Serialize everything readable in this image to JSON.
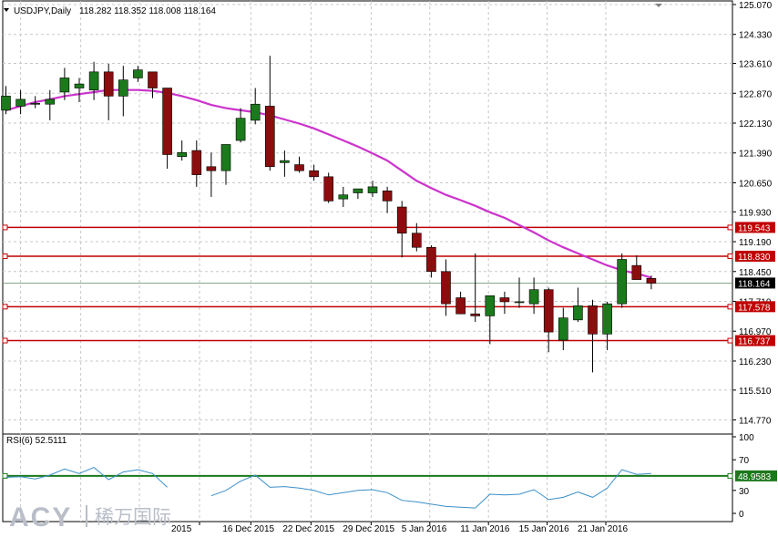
{
  "header": {
    "symbol": "USDJPY,Daily",
    "ohlc": "118.282 118.352 118.008 118.164"
  },
  "rsi_label": "RSI(6) 52.5111",
  "logo": {
    "brand": "ACY",
    "cn": "稀万国际"
  },
  "colors": {
    "bull": "#1b7a1b",
    "bear": "#8b0d0d",
    "ma": "#cc33cc",
    "level": "#c00000",
    "rsi_line": "#3a8fc8",
    "rsi_level": "#1b7a1b",
    "grid": "#c8c8c8"
  },
  "chart_data": [
    {
      "type": "candlestick",
      "title": "USDJPY,Daily",
      "ylim": [
        114.42,
        125.16
      ],
      "y_ticks": [
        "125.070",
        "124.330",
        "123.610",
        "122.870",
        "122.130",
        "121.390",
        "120.650",
        "119.930",
        "119.190",
        "118.450",
        "117.710",
        "116.970",
        "116.230",
        "115.510",
        "114.770"
      ],
      "x_tick_labels": [
        {
          "label": "2015",
          "index": 13.2
        },
        {
          "label": "16 Dec 2015",
          "index": 16.7
        },
        {
          "label": "22 Dec 2015",
          "index": 20.8
        },
        {
          "label": "29 Dec 2015",
          "index": 24.9
        },
        {
          "label": "5 Jan 2016",
          "index": 28.9
        },
        {
          "label": "11 Jan 2016",
          "index": 32.9
        },
        {
          "label": "15 Jan 2016",
          "index": 36.9
        },
        {
          "label": "21 Jan 2016",
          "index": 40.9
        }
      ],
      "candles": [
        {
          "o": 122.45,
          "h": 123.05,
          "l": 122.35,
          "c": 122.8
        },
        {
          "o": 122.55,
          "h": 122.95,
          "l": 122.35,
          "c": 122.72
        },
        {
          "o": 122.62,
          "h": 122.8,
          "l": 122.5,
          "c": 122.62
        },
        {
          "o": 122.6,
          "h": 122.95,
          "l": 122.2,
          "c": 122.72
        },
        {
          "o": 122.9,
          "h": 123.5,
          "l": 122.7,
          "c": 123.25
        },
        {
          "o": 123.0,
          "h": 123.25,
          "l": 122.65,
          "c": 123.1
        },
        {
          "o": 122.95,
          "h": 123.65,
          "l": 122.7,
          "c": 123.4
        },
        {
          "o": 123.4,
          "h": 123.6,
          "l": 122.2,
          "c": 122.8
        },
        {
          "o": 122.8,
          "h": 123.55,
          "l": 122.3,
          "c": 123.2
        },
        {
          "o": 123.25,
          "h": 123.55,
          "l": 123.15,
          "c": 123.45
        },
        {
          "o": 123.4,
          "h": 123.4,
          "l": 122.75,
          "c": 123.0
        },
        {
          "o": 123.0,
          "h": 123.0,
          "l": 121.0,
          "c": 121.35
        },
        {
          "o": 121.3,
          "h": 121.7,
          "l": 121.2,
          "c": 121.4
        },
        {
          "o": 121.45,
          "h": 121.7,
          "l": 120.55,
          "c": 120.85
        },
        {
          "o": 121.05,
          "h": 121.4,
          "l": 120.3,
          "c": 120.95
        },
        {
          "o": 120.95,
          "h": 121.55,
          "l": 120.6,
          "c": 121.6
        },
        {
          "o": 121.7,
          "h": 122.5,
          "l": 121.65,
          "c": 122.25
        },
        {
          "o": 122.2,
          "h": 123.0,
          "l": 122.1,
          "c": 122.6
        },
        {
          "o": 122.55,
          "h": 123.8,
          "l": 120.95,
          "c": 121.05
        },
        {
          "o": 121.15,
          "h": 121.45,
          "l": 120.8,
          "c": 121.2
        },
        {
          "o": 121.1,
          "h": 121.3,
          "l": 120.9,
          "c": 120.95
        },
        {
          "o": 120.95,
          "h": 121.1,
          "l": 120.7,
          "c": 120.8
        },
        {
          "o": 120.8,
          "h": 120.9,
          "l": 120.15,
          "c": 120.2
        },
        {
          "o": 120.25,
          "h": 120.55,
          "l": 120.05,
          "c": 120.35
        },
        {
          "o": 120.4,
          "h": 120.5,
          "l": 120.25,
          "c": 120.5
        },
        {
          "o": 120.4,
          "h": 120.7,
          "l": 120.3,
          "c": 120.55
        },
        {
          "o": 120.45,
          "h": 120.55,
          "l": 119.9,
          "c": 120.2
        },
        {
          "o": 120.05,
          "h": 120.2,
          "l": 118.8,
          "c": 119.4
        },
        {
          "o": 119.4,
          "h": 119.65,
          "l": 118.95,
          "c": 119.05
        },
        {
          "o": 119.05,
          "h": 119.1,
          "l": 118.3,
          "c": 118.45
        },
        {
          "o": 118.45,
          "h": 118.75,
          "l": 117.35,
          "c": 117.65
        },
        {
          "o": 117.8,
          "h": 117.95,
          "l": 117.4,
          "c": 117.4
        },
        {
          "o": 117.4,
          "h": 118.9,
          "l": 117.2,
          "c": 117.35
        },
        {
          "o": 117.35,
          "h": 117.85,
          "l": 116.65,
          "c": 117.85
        },
        {
          "o": 117.8,
          "h": 117.95,
          "l": 117.4,
          "c": 117.7
        },
        {
          "o": 117.7,
          "h": 118.3,
          "l": 117.55,
          "c": 117.7
        },
        {
          "o": 117.65,
          "h": 118.3,
          "l": 117.4,
          "c": 118.0
        },
        {
          "o": 118.0,
          "h": 118.05,
          "l": 116.45,
          "c": 116.95
        },
        {
          "o": 116.75,
          "h": 117.55,
          "l": 116.5,
          "c": 117.3
        },
        {
          "o": 117.25,
          "h": 118.05,
          "l": 117.2,
          "c": 117.6
        },
        {
          "o": 117.6,
          "h": 117.75,
          "l": 115.95,
          "c": 116.9
        },
        {
          "o": 116.9,
          "h": 117.7,
          "l": 116.5,
          "c": 117.65
        },
        {
          "o": 117.65,
          "h": 118.9,
          "l": 117.55,
          "c": 118.75
        },
        {
          "o": 118.6,
          "h": 118.85,
          "l": 118.25,
          "c": 118.25
        },
        {
          "o": 118.28,
          "h": 118.35,
          "l": 118.01,
          "c": 118.16
        }
      ],
      "ma": [
        122.45,
        122.55,
        122.65,
        122.72,
        122.8,
        122.85,
        122.9,
        122.95,
        122.95,
        122.95,
        122.93,
        122.88,
        122.8,
        122.7,
        122.58,
        122.5,
        122.45,
        122.4,
        122.32,
        122.22,
        122.12,
        122.0,
        121.85,
        121.7,
        121.55,
        121.38,
        121.2,
        120.95,
        120.7,
        120.52,
        120.35,
        120.22,
        120.08,
        119.92,
        119.78,
        119.6,
        119.42,
        119.22,
        119.05,
        118.9,
        118.75,
        118.6,
        118.48,
        118.4,
        118.3
      ],
      "levels": [
        {
          "value": 119.543,
          "label": "119.543"
        },
        {
          "value": 118.83,
          "label": "118.830"
        },
        {
          "value": 117.578,
          "label": "117.578"
        },
        {
          "value": 116.737,
          "label": "116.737"
        }
      ],
      "current_price": {
        "value": 118.164,
        "label": "118.164"
      }
    },
    {
      "type": "line",
      "title": "RSI(6) 52.5111",
      "ylim": [
        0,
        100
      ],
      "y_ticks": [
        "100",
        "70",
        "30",
        "0"
      ],
      "level": {
        "value": 48.9583,
        "label": "48.9583"
      },
      "values": [
        47,
        48,
        45,
        50,
        58,
        52,
        60,
        44,
        54,
        57,
        52,
        34,
        null,
        null,
        23,
        30,
        42,
        50,
        34,
        35,
        33,
        30,
        24,
        27,
        30,
        31,
        27,
        17,
        15,
        12,
        9,
        8,
        7,
        25,
        24,
        25,
        31,
        18,
        21,
        28,
        21,
        33,
        57,
        51,
        52
      ]
    }
  ]
}
